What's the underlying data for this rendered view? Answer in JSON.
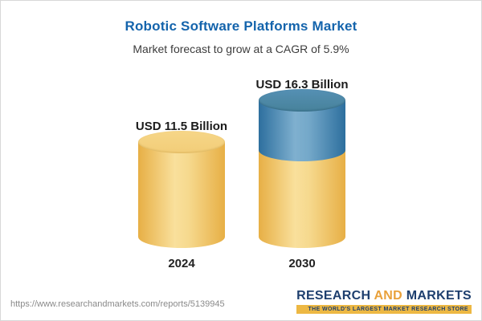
{
  "page": {
    "title": "Robotic Software Platforms Market",
    "subtitle": "Market forecast to grow at a CAGR of 5.9%"
  },
  "chart_data": {
    "type": "bar",
    "variant": "3d-cylinder",
    "title": "Robotic Software Platforms Market",
    "subtitle": "Market forecast to grow at a CAGR of 5.9%",
    "categories": [
      "2024",
      "2030"
    ],
    "values": [
      11.5,
      16.3
    ],
    "value_labels": [
      "USD 11.5 Billion",
      "USD 16.3 Billion"
    ],
    "unit": "USD Billion",
    "cagr": "5.9%",
    "legend_position": "none",
    "grid": false,
    "colors": {
      "base_segment": "#F2CD78",
      "growth_segment": "#47829A",
      "title_accent": "#1464AC"
    },
    "notes": "2030 cylinder shows base (gold) portion plus growth (blue) top segment"
  },
  "footer": {
    "url": "https://www.researchandmarkets.com/reports/5139945",
    "logo": {
      "part1": "RESEARCH ",
      "part2": "AND",
      "part3": " MARKETS",
      "tagline": "THE WORLD'S LARGEST MARKET RESEARCH STORE"
    }
  }
}
